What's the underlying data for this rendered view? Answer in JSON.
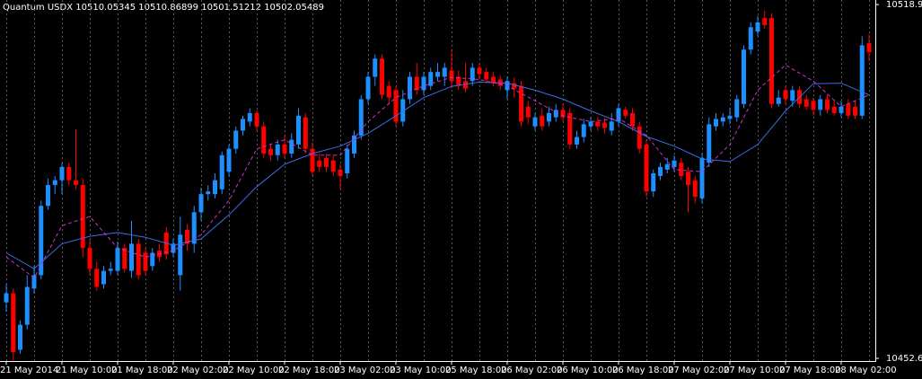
{
  "chart_data": {
    "type": "candlestick",
    "title": "Quantum USDX 10510.05345 10510.86899 10501.51212 10502.05489",
    "up_color": "#1e8fff",
    "down_color": "#ff0000",
    "background": "#000000",
    "grid": true,
    "ylim": [
      10452.1,
      10519.8
    ],
    "yticks": [
      10518.94,
      10452.6
    ],
    "xticks": [
      {
        "value": 0,
        "label": "21 May 2014"
      },
      {
        "value": 8,
        "label": "21 May 10:00"
      },
      {
        "value": 16,
        "label": "21 May 18:00"
      },
      {
        "value": 24,
        "label": "22 May 02:00"
      },
      {
        "value": 32,
        "label": "22 May 10:00"
      },
      {
        "value": 40,
        "label": "22 May 18:00"
      },
      {
        "value": 48,
        "label": "23 May 02:00"
      },
      {
        "value": 56,
        "label": "23 May 10:00"
      },
      {
        "value": 64,
        "label": "25 May 18:00"
      },
      {
        "value": 72,
        "label": "26 May 02:00"
      },
      {
        "value": 80,
        "label": "26 May 10:00"
      },
      {
        "value": 88,
        "label": "26 May 18:00"
      },
      {
        "value": 96,
        "label": "27 May 02:00"
      },
      {
        "value": 104,
        "label": "27 May 10:00"
      },
      {
        "value": 112,
        "label": "27 May 18:00"
      },
      {
        "value": 120,
        "label": "28 May 02:00"
      }
    ],
    "open": [
      10463.1,
      10464.8,
      10454.2,
      10458.9,
      10465.7,
      10468.2,
      10481.2,
      10485.1,
      10486.0,
      10488.5,
      10486.0,
      10485.1,
      10473.3,
      10469.4,
      10466.5,
      10469.0,
      10469.0,
      10473.3,
      10469.0,
      10474.1,
      10472.4,
      10469.9,
      10472.8,
      10476.2,
      10472.4,
      10468.2,
      10476.7,
      10474.1,
      10480.0,
      10483.4,
      10483.4,
      10484.3,
      10487.6,
      10491.9,
      10495.3,
      10497.0,
      10498.6,
      10496.1,
      10491.9,
      10490.7,
      10492.7,
      10491.0,
      10492.7,
      10497.8,
      10491.9,
      10489.7,
      10490.2,
      10489.7,
      10488.0,
      10487.3,
      10491.0,
      10494.4,
      10501.2,
      10505.4,
      10508.8,
      10503.7,
      10502.9,
      10497.0,
      10501.2,
      10505.4,
      10502.9,
      10503.7,
      10505.4,
      10505.4,
      10506.6,
      10505.4,
      10504.6,
      10504.6,
      10507.1,
      10506.3,
      10505.4,
      10504.9,
      10502.9,
      10504.2,
      10503.7,
      10499.8,
      10496.1,
      10498.1,
      10497.0,
      10497.8,
      10499.2,
      10498.6,
      10492.7,
      10494.1,
      10496.1,
      10497.0,
      10496.8,
      10495.3,
      10497.0,
      10499.2,
      10498.6,
      10496.1,
      10492.7,
      10483.9,
      10486.8,
      10488.0,
      10488.5,
      10489.3,
      10487.6,
      10486.0,
      10482.6,
      10489.3,
      10496.1,
      10497.0,
      10497.5,
      10497.8,
      10500.3,
      10510.5,
      10513.9,
      10516.4,
      10516.4,
      10500.3,
      10502.9,
      10500.9,
      10502.9,
      10501.2,
      10500.9,
      10499.2,
      10501.2,
      10499.8,
      10498.6,
      10500.3,
      10499.8,
      10498.1,
      10511.7
    ],
    "high": [
      10466.5,
      10465.7,
      10459.7,
      10468.2,
      10469.9,
      10482.2,
      10486.3,
      10486.8,
      10489.3,
      10489.3,
      10495.6,
      10486.3,
      10475.0,
      10470.7,
      10469.9,
      10470.7,
      10474.5,
      10474.1,
      10478.4,
      10475.0,
      10473.3,
      10473.3,
      10474.1,
      10477.2,
      10475.0,
      10479.2,
      10477.8,
      10481.2,
      10484.6,
      10485.1,
      10487.3,
      10491.4,
      10492.7,
      10496.1,
      10498.1,
      10499.5,
      10499.2,
      10497.0,
      10492.7,
      10493.6,
      10494.4,
      10494.8,
      10499.5,
      10498.6,
      10493.1,
      10491.0,
      10491.0,
      10490.7,
      10489.0,
      10492.7,
      10495.3,
      10502.0,
      10506.3,
      10509.6,
      10509.6,
      10504.6,
      10503.7,
      10502.9,
      10506.3,
      10508.0,
      10506.3,
      10507.1,
      10508.0,
      10508.0,
      10510.5,
      10506.6,
      10508.0,
      10508.0,
      10508.0,
      10507.1,
      10506.3,
      10505.6,
      10505.4,
      10505.3,
      10504.6,
      10500.9,
      10498.6,
      10499.5,
      10499.8,
      10500.3,
      10500.3,
      10499.5,
      10495.3,
      10497.5,
      10497.8,
      10497.8,
      10497.8,
      10498.6,
      10500.3,
      10499.8,
      10499.5,
      10497.0,
      10493.6,
      10488.0,
      10489.3,
      10490.2,
      10490.7,
      10490.2,
      10488.5,
      10486.8,
      10491.0,
      10497.8,
      10498.6,
      10498.6,
      10499.5,
      10502.0,
      10511.3,
      10515.6,
      10516.8,
      10517.8,
      10517.3,
      10502.9,
      10503.7,
      10503.7,
      10503.7,
      10502.0,
      10501.5,
      10502.0,
      10502.0,
      10500.9,
      10500.9,
      10501.2,
      10500.9,
      10513.0,
      10513.4
    ],
    "low": [
      10461.4,
      10452.1,
      10453.5,
      10458.0,
      10464.8,
      10467.4,
      10480.5,
      10483.4,
      10483.4,
      10485.1,
      10484.3,
      10471.6,
      10468.2,
      10465.3,
      10465.7,
      10468.2,
      10468.2,
      10468.7,
      10467.7,
      10467.4,
      10468.2,
      10469.0,
      10470.7,
      10471.1,
      10471.6,
      10465.3,
      10472.8,
      10472.4,
      10478.4,
      10482.2,
      10482.6,
      10483.4,
      10486.8,
      10491.0,
      10494.4,
      10496.1,
      10495.3,
      10490.2,
      10489.7,
      10489.7,
      10490.2,
      10490.2,
      10491.9,
      10491.0,
      10486.8,
      10487.6,
      10487.6,
      10486.8,
      10484.3,
      10486.3,
      10490.2,
      10493.6,
      10500.3,
      10503.7,
      10501.2,
      10500.3,
      10496.1,
      10496.1,
      10500.3,
      10502.0,
      10502.0,
      10502.9,
      10504.6,
      10503.7,
      10503.2,
      10502.9,
      10502.5,
      10503.7,
      10504.9,
      10504.2,
      10503.6,
      10502.9,
      10501.2,
      10501.5,
      10496.1,
      10496.5,
      10495.3,
      10495.3,
      10496.1,
      10497.0,
      10497.0,
      10491.9,
      10491.9,
      10493.1,
      10495.3,
      10495.3,
      10494.8,
      10494.4,
      10496.1,
      10497.5,
      10495.3,
      10491.0,
      10482.9,
      10482.9,
      10486.0,
      10487.3,
      10487.6,
      10486.0,
      10480.0,
      10481.7,
      10481.7,
      10488.5,
      10495.3,
      10496.1,
      10496.5,
      10497.0,
      10499.5,
      10509.6,
      10513.0,
      10514.4,
      10499.5,
      10499.8,
      10500.3,
      10499.8,
      10499.5,
      10499.2,
      10498.1,
      10498.1,
      10498.5,
      10498.1,
      10497.8,
      10497.5,
      10497.5,
      10497.5,
      10508.3
    ],
    "close": [
      10464.8,
      10453.8,
      10458.9,
      10466.0,
      10468.2,
      10481.2,
      10485.1,
      10486.0,
      10488.5,
      10486.0,
      10485.1,
      10473.3,
      10469.4,
      10466.0,
      10469.0,
      10469.4,
      10473.3,
      10469.4,
      10474.1,
      10468.2,
      10469.0,
      10472.4,
      10471.6,
      10472.1,
      10474.1,
      10475.8,
      10474.1,
      10480.0,
      10483.4,
      10483.9,
      10486.0,
      10490.7,
      10491.9,
      10495.3,
      10497.5,
      10498.6,
      10496.1,
      10491.0,
      10490.7,
      10492.7,
      10491.0,
      10493.6,
      10498.1,
      10491.9,
      10487.6,
      10488.5,
      10488.5,
      10487.6,
      10486.8,
      10491.9,
      10494.4,
      10501.2,
      10505.4,
      10508.8,
      10502.0,
      10501.5,
      10497.0,
      10501.2,
      10505.4,
      10502.9,
      10505.4,
      10506.3,
      10506.3,
      10507.1,
      10504.6,
      10503.7,
      10503.2,
      10507.1,
      10505.9,
      10504.9,
      10504.2,
      10503.7,
      10504.6,
      10503.2,
      10497.0,
      10497.8,
      10497.8,
      10496.1,
      10498.6,
      10499.2,
      10497.8,
      10492.7,
      10494.1,
      10496.5,
      10497.0,
      10496.1,
      10495.8,
      10497.0,
      10499.5,
      10498.1,
      10496.1,
      10491.9,
      10483.9,
      10487.3,
      10488.5,
      10489.0,
      10489.7,
      10486.8,
      10485.1,
      10482.9,
      10490.2,
      10496.5,
      10497.5,
      10497.8,
      10498.1,
      10501.2,
      10510.5,
      10514.7,
      10515.6,
      10515.1,
      10500.3,
      10501.5,
      10501.2,
      10502.9,
      10500.3,
      10499.8,
      10499.2,
      10501.2,
      10499.2,
      10498.6,
      10499.8,
      10498.1,
      10498.1,
      10511.3,
      10510.0
    ],
    "series": [
      {
        "color": "#3a6ee8",
        "dash": false,
        "x": [
          0,
          4,
          8,
          12,
          16,
          20,
          24,
          28,
          32,
          36,
          40,
          44,
          48,
          52,
          56,
          60,
          64,
          68,
          72,
          76,
          80,
          84,
          88,
          92,
          96,
          100,
          104,
          108,
          112,
          116,
          120,
          124
        ],
        "values": [
          10472.4,
          10469.4,
          10474.1,
          10475.5,
          10476.2,
          10475.3,
          10473.8,
          10475.0,
          10479.5,
          10484.8,
          10489.0,
          10491.0,
          10492.4,
          10494.8,
          10498.1,
          10501.5,
          10503.6,
          10504.4,
          10504.2,
          10502.9,
          10501.2,
          10499.0,
          10497.0,
          10494.2,
          10492.4,
          10490.0,
          10489.5,
          10492.7,
          10499.0,
          10504.1,
          10504.2,
          10502.0
        ]
      },
      {
        "color": "#d02fd0",
        "dash": true,
        "x": [
          0,
          4,
          8,
          12,
          16,
          20,
          24,
          28,
          32,
          36,
          40,
          44,
          48,
          52,
          56,
          60,
          64,
          68,
          72,
          76,
          80,
          84,
          88,
          92,
          96,
          100,
          104,
          108,
          112,
          116,
          120,
          124
        ],
        "values": [
          10471.6,
          10467.7,
          10477.5,
          10479.2,
          10473.3,
          10471.6,
          10472.8,
          10475.8,
          10482.2,
          10491.9,
          10493.6,
          10490.7,
          10490.7,
          10497.0,
          10501.5,
          10503.7,
          10505.3,
          10504.9,
          10503.7,
          10500.9,
          10498.1,
          10497.0,
          10497.6,
          10494.4,
          10488.0,
          10487.6,
          10492.7,
          10502.9,
          10507.6,
          10504.6,
          10499.8,
          10502.0
        ]
      }
    ]
  }
}
